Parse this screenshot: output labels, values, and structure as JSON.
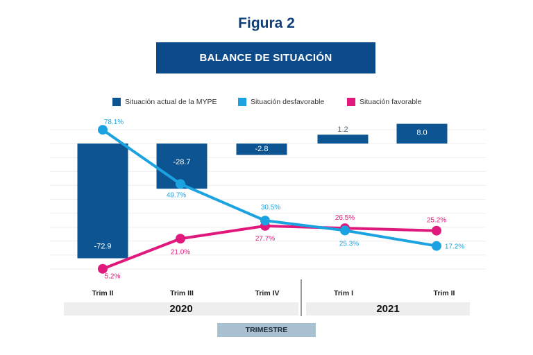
{
  "figure_title": "Figura 2",
  "colors": {
    "bar": "#0d5592",
    "unfavorable": "#1aa3e0",
    "favorable": "#e0197d",
    "banner": "#0d4a8a",
    "grid": "#eeeeee"
  },
  "chart_data": {
    "type": "bar+line",
    "title": "BALANCE DE SITUACIÓN",
    "xlabel": "TRIMESTRE",
    "categories": [
      "Trim II",
      "Trim III",
      "Trim IV",
      "Trim I",
      "Trim II"
    ],
    "year_groups": [
      {
        "label": "2020",
        "categories": [
          "Trim II",
          "Trim III",
          "Trim IV"
        ]
      },
      {
        "label": "2021",
        "categories": [
          "Trim I",
          "Trim II"
        ]
      }
    ],
    "legend_position": "top",
    "grid": true,
    "series": [
      {
        "name": "Situación actual de la MYPE",
        "kind": "bar",
        "values": [
          -72.9,
          -28.7,
          -2.8,
          1.2,
          8.0
        ],
        "labels": [
          "-72.9",
          "-28.7",
          "-2.8",
          "1.2",
          "8.0"
        ]
      },
      {
        "name": "Situación desfavorable",
        "kind": "line",
        "values": [
          78.1,
          49.7,
          30.5,
          25.3,
          17.2
        ],
        "labels": [
          "78.1%",
          "49.7%",
          "30.5%",
          "25.3%",
          "17.2%"
        ]
      },
      {
        "name": "Situación favorable",
        "kind": "line",
        "values": [
          5.2,
          21.0,
          27.7,
          26.5,
          25.2
        ],
        "labels": [
          "5.2%",
          "21.0%",
          "27.7%",
          "26.5%",
          "25.2%"
        ]
      }
    ]
  }
}
